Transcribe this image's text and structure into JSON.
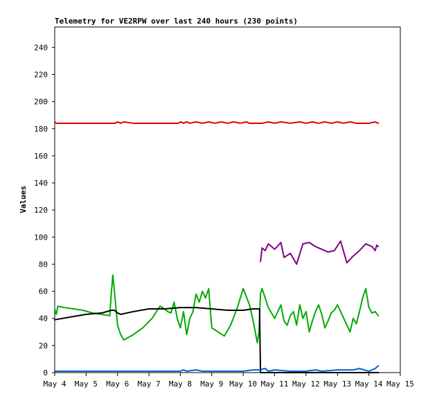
{
  "chart_data": {
    "type": "line",
    "title": "Telemetry for VE2RPW over last 240 hours (230 points)",
    "xlabel": "",
    "ylabel": "Values",
    "x_range": [
      "May 4",
      "May 15"
    ],
    "y_range": [
      0,
      255
    ],
    "grid": false,
    "x_ticks": [
      "May 4",
      "May 5",
      "May 6",
      "May 7",
      "May 8",
      "May 9",
      "May 10",
      "May 11",
      "May 12",
      "May 13",
      "May 14",
      "May 15"
    ],
    "y_ticks": [
      0,
      20,
      40,
      60,
      80,
      100,
      120,
      140,
      160,
      180,
      200,
      220,
      240
    ],
    "series": [
      {
        "color": "#dd0000",
        "x": [
          0.0,
          0.05,
          0.3,
          0.6,
          1.0,
          1.5,
          1.93,
          2.0,
          2.1,
          2.2,
          2.5,
          3.0,
          3.5,
          3.94,
          4.0,
          4.1,
          4.2,
          4.3,
          4.5,
          4.7,
          4.9,
          5.1,
          5.3,
          5.5,
          5.7,
          5.9,
          6.1,
          6.2,
          6.4,
          6.6,
          6.8,
          7.0,
          7.2,
          7.5,
          7.8,
          8.0,
          8.2,
          8.4,
          8.6,
          8.8,
          9.0,
          9.2,
          9.4,
          9.6,
          9.8,
          10.0,
          10.2,
          10.3
        ],
        "values": [
          185,
          184,
          184,
          184,
          184,
          184,
          184,
          185,
          184,
          185,
          184,
          184,
          184,
          184,
          185,
          184,
          185,
          184,
          185,
          184,
          185,
          184,
          185,
          184,
          185,
          184,
          185,
          184,
          184,
          184,
          185,
          184,
          185,
          184,
          185,
          184,
          185,
          184,
          185,
          184,
          185,
          184,
          185,
          184,
          184,
          184,
          185,
          184
        ]
      },
      {
        "color": "#800080",
        "x": [
          6.55,
          6.6,
          6.7,
          6.8,
          7.0,
          7.2,
          7.3,
          7.5,
          7.7,
          7.9,
          8.1,
          8.3,
          8.5,
          8.7,
          8.9,
          9.1,
          9.3,
          9.5,
          9.7,
          9.9,
          10.1,
          10.2,
          10.25,
          10.3
        ],
        "values": [
          82,
          92,
          90,
          95,
          91,
          96,
          85,
          88,
          80,
          95,
          96,
          93,
          91,
          89,
          90,
          97,
          81,
          86,
          90,
          95,
          93,
          90,
          94,
          93
        ]
      },
      {
        "color": "#00aa00",
        "x": [
          0.0,
          0.05,
          0.1,
          0.3,
          0.6,
          0.9,
          1.2,
          1.5,
          1.75,
          1.8,
          1.85,
          1.9,
          2.0,
          2.1,
          2.2,
          2.5,
          2.8,
          3.1,
          3.35,
          3.5,
          3.6,
          3.7,
          3.8,
          3.9,
          4.0,
          4.1,
          4.2,
          4.3,
          4.4,
          4.5,
          4.6,
          4.7,
          4.8,
          4.9,
          5.0,
          5.2,
          5.4,
          5.6,
          5.8,
          6.0,
          6.2,
          6.3,
          6.4,
          6.45,
          6.5,
          6.55,
          6.6,
          6.7,
          6.8,
          6.9,
          7.0,
          7.1,
          7.2,
          7.3,
          7.4,
          7.5,
          7.6,
          7.7,
          7.8,
          7.9,
          8.0,
          8.1,
          8.2,
          8.3,
          8.4,
          8.5,
          8.6,
          8.7,
          8.8,
          8.9,
          9.0,
          9.1,
          9.2,
          9.3,
          9.4,
          9.5,
          9.6,
          9.7,
          9.8,
          9.9,
          10.0,
          10.1,
          10.2,
          10.3
        ],
        "values": [
          47,
          43,
          49,
          48,
          47,
          46,
          44,
          43,
          42,
          58,
          72,
          60,
          35,
          28,
          24,
          28,
          33,
          40,
          49,
          47,
          45,
          44,
          52,
          40,
          33,
          45,
          28,
          40,
          45,
          58,
          52,
          60,
          55,
          62,
          33,
          30,
          27,
          35,
          47,
          62,
          50,
          40,
          28,
          22,
          30,
          58,
          62,
          55,
          48,
          44,
          40,
          45,
          50,
          38,
          35,
          42,
          45,
          35,
          50,
          40,
          45,
          30,
          38,
          45,
          50,
          43,
          33,
          38,
          44,
          46,
          50,
          45,
          40,
          35,
          30,
          40,
          36,
          45,
          55,
          62,
          48,
          44,
          45,
          42
        ]
      },
      {
        "color": "#000000",
        "x": [
          0.0,
          0.5,
          1.0,
          1.5,
          1.8,
          1.9,
          2.0,
          2.1,
          2.5,
          3.0,
          3.5,
          4.0,
          4.5,
          5.0,
          5.5,
          6.0,
          6.3,
          6.5,
          6.52,
          6.55,
          7.0,
          8.0,
          9.0,
          10.0,
          10.3
        ],
        "values": [
          39,
          41,
          43,
          44,
          46,
          46,
          44,
          43,
          45,
          47,
          47,
          48,
          48,
          47,
          46,
          46,
          47,
          47,
          47,
          0,
          0,
          0,
          0,
          0,
          0
        ]
      },
      {
        "color": "#0060cc",
        "x": [
          0.0,
          1.0,
          1.5,
          1.8,
          1.9,
          2.0,
          2.5,
          3.0,
          3.5,
          4.0,
          4.1,
          4.2,
          4.5,
          4.7,
          5.0,
          5.5,
          6.0,
          6.3,
          6.5,
          6.7,
          6.8,
          7.0,
          7.5,
          8.0,
          8.3,
          8.5,
          9.0,
          9.5,
          9.7,
          10.0,
          10.1,
          10.2,
          10.3
        ],
        "values": [
          1,
          1,
          1,
          1,
          1,
          1,
          1,
          1,
          1,
          1,
          2,
          1,
          2,
          1,
          1,
          1,
          1,
          2,
          2,
          3,
          1,
          2,
          1,
          1,
          2,
          1,
          2,
          2,
          3,
          1,
          2,
          3,
          5
        ]
      }
    ]
  }
}
